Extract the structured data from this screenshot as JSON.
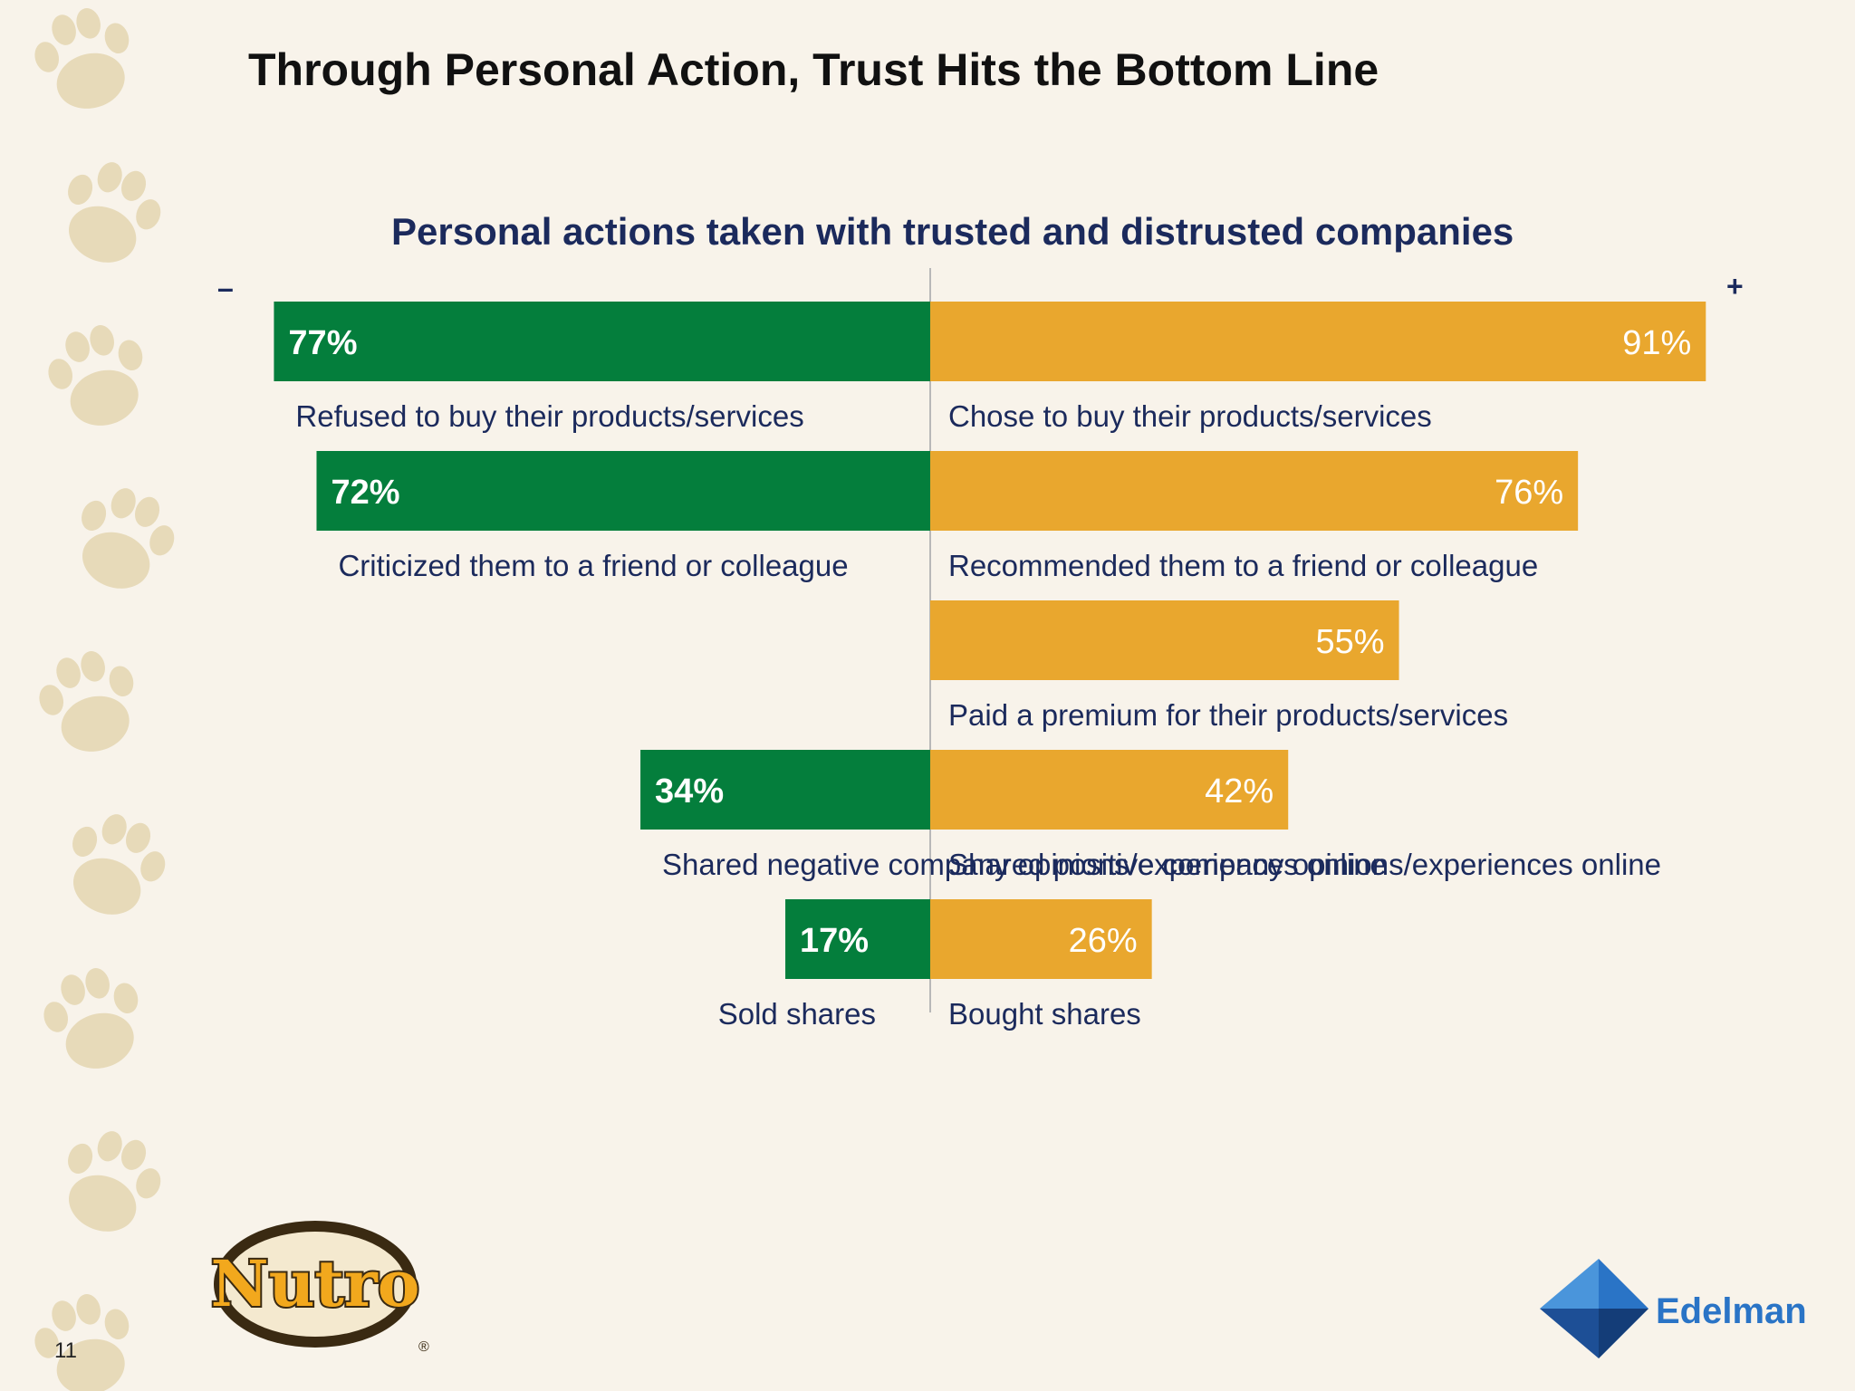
{
  "slide": {
    "title": "Through Personal Action, Trust Hits the Bottom Line",
    "page_number": "11"
  },
  "axis_signs": {
    "negative": "–",
    "positive": "+"
  },
  "logos": {
    "nutro": "Nutro",
    "edelman": "Edelman"
  },
  "colors": {
    "negative": "#047e3c",
    "positive": "#e9a72e",
    "text": "#1b2a5c",
    "background": "#f8f3ea"
  },
  "chart_data": {
    "type": "bar",
    "orientation": "horizontal-diverging",
    "title": "Personal actions taken with trusted and distrusted companies",
    "unit": "%",
    "xlim": [
      -100,
      100
    ],
    "rows": [
      {
        "negative_label": "Refused to buy their products/services",
        "negative_value": 77,
        "positive_label": "Chose to buy their products/services",
        "positive_value": 91
      },
      {
        "negative_label": "Criticized them to a friend or colleague",
        "negative_value": 72,
        "positive_label": "Recommended them to a friend or colleague",
        "positive_value": 76
      },
      {
        "negative_label": "",
        "negative_value": null,
        "positive_label": "Paid a premium for their products/services",
        "positive_value": 55
      },
      {
        "negative_label": "Shared negative company opinions/experiences online",
        "negative_value": 34,
        "positive_label": "Shared positive company opinions/experiences online",
        "positive_value": 42
      },
      {
        "negative_label": "Sold shares",
        "negative_value": 17,
        "positive_label": "Bought shares",
        "positive_value": 26
      }
    ]
  }
}
